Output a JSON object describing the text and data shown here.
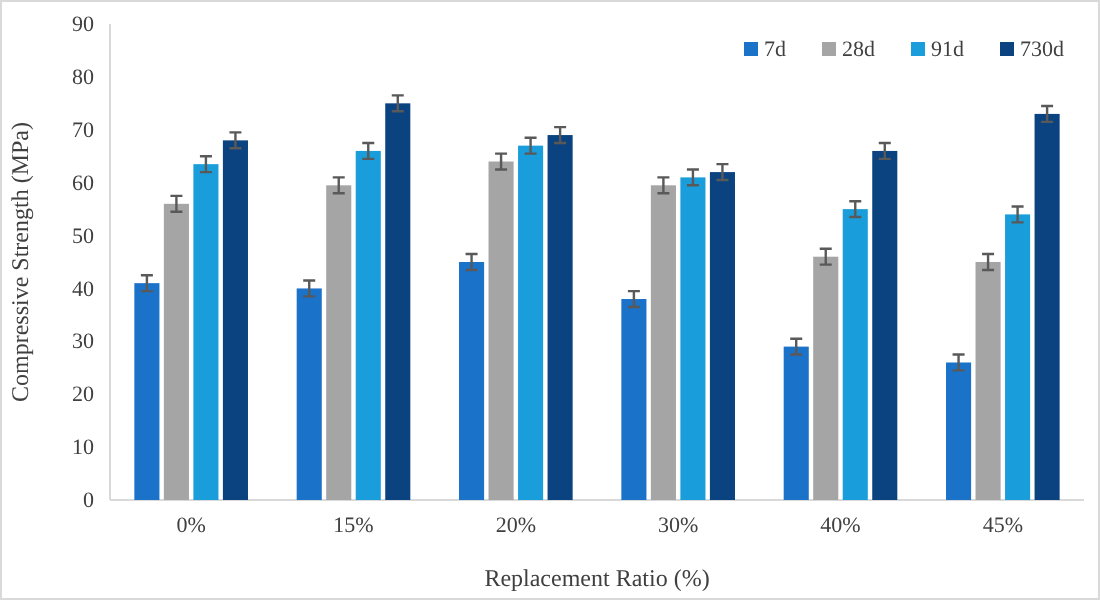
{
  "chart_data": {
    "type": "bar",
    "xlabel": "Replacement Ratio (%)",
    "ylabel": "Compressive Strength (MPa)",
    "categories": [
      "0%",
      "15%",
      "20%",
      "30%",
      "40%",
      "45%"
    ],
    "series": [
      {
        "name": "7d",
        "color": "#1a72c9",
        "values": [
          41,
          40,
          45,
          38,
          29,
          26
        ],
        "errors": [
          1.5,
          1.5,
          1.5,
          1.5,
          1.5,
          1.5
        ]
      },
      {
        "name": "28d",
        "color": "#a5a5a5",
        "values": [
          56,
          59.5,
          64,
          59.5,
          46,
          45
        ],
        "errors": [
          1.5,
          1.5,
          1.5,
          1.5,
          1.5,
          1.5
        ]
      },
      {
        "name": "91d",
        "color": "#1a9edb",
        "values": [
          63.5,
          66,
          67,
          61,
          55,
          54
        ],
        "errors": [
          1.5,
          1.5,
          1.5,
          1.5,
          1.5,
          1.5
        ]
      },
      {
        "name": "730d",
        "color": "#0b4280",
        "values": [
          68,
          75,
          69,
          62,
          66,
          73
        ],
        "errors": [
          1.5,
          1.5,
          1.5,
          1.5,
          1.5,
          1.5
        ]
      }
    ],
    "ylim": [
      0,
      90
    ],
    "yticks": [
      0,
      10,
      20,
      30,
      40,
      50,
      60,
      70,
      80,
      90
    ],
    "legend": "top right"
  }
}
